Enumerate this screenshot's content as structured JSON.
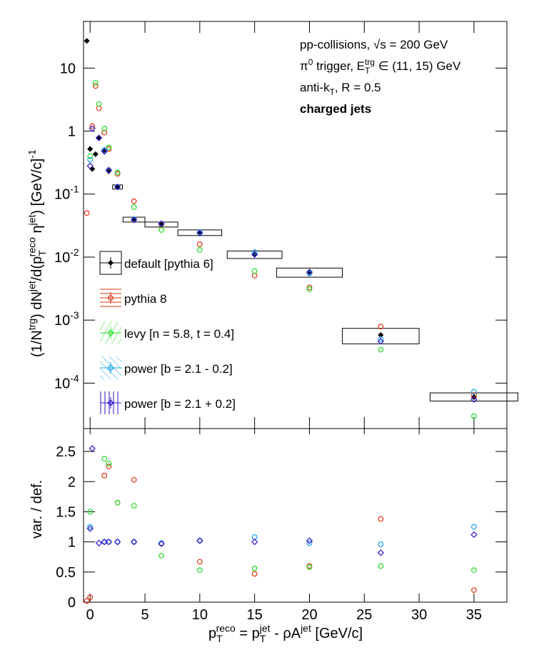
{
  "chart_data": [
    {
      "type": "scatter",
      "ylog": true,
      "ylabel": {
        "pieces": [
          "(1/N",
          "trg",
          ") dN",
          "jet",
          "/d(p",
          "T",
          "reco",
          " η",
          "jet",
          ") [GeV/c]",
          "-1"
        ],
        "styles": [
          "n",
          "sup",
          "n",
          "sup",
          "n",
          "sub",
          "sup",
          "n",
          "sup",
          "n",
          "sup"
        ]
      },
      "annotations": [
        {
          "pieces": [
            "pp-collisions, √s = 200 GeV"
          ],
          "styles": [
            "n"
          ]
        },
        {
          "pieces": [
            "π",
            "0",
            " trigger, E",
            "T",
            "trg",
            " ∈ (11, 15) GeV"
          ],
          "styles": [
            "n",
            "sup",
            "n",
            "sub",
            "sup",
            "n"
          ]
        },
        {
          "pieces": [
            "anti-k",
            "T",
            ", R = 0.5"
          ],
          "styles": [
            "n",
            "sub",
            "n"
          ]
        },
        {
          "pieces": [
            "charged jets"
          ],
          "styles": [
            "b"
          ]
        }
      ],
      "legend": "center-left",
      "xlim": [
        -0.6,
        38
      ],
      "ylim": [
        1.9e-05,
        55
      ],
      "yticks": [
        {
          "value": 0.0001,
          "label": "10",
          "sup": "-4"
        },
        {
          "value": 0.001,
          "label": "10",
          "sup": "-3"
        },
        {
          "value": 0.01,
          "label": "10",
          "sup": "-2"
        },
        {
          "value": 0.1,
          "label": "10",
          "sup": "-1"
        },
        1,
        10
      ],
      "x": [
        -0.3,
        0,
        0.2,
        0.5,
        0.8,
        1.3,
        1.7,
        2.5,
        4,
        6.5,
        10,
        15,
        20,
        26.5,
        35
      ],
      "series": [
        {
          "name": "default [pythia 6]",
          "color": "#000000",
          "marker": "diamond-filled",
          "values": [
            27,
            0.52,
            0.25,
            0.43,
            0.77,
            0.47,
            0.23,
            0.13,
            0.039,
            0.033,
            0.024,
            0.011,
            0.0057,
            0.00058,
            6e-05
          ],
          "x_err": [
            null,
            null,
            null,
            null,
            null,
            null,
            null,
            0.45,
            1,
            1.5,
            2,
            2.5,
            3,
            3.5,
            4
          ],
          "sys_low": [
            null,
            null,
            null,
            null,
            null,
            null,
            null,
            0.12,
            0.036,
            0.03,
            0.022,
            0.0095,
            0.0048,
            0.00042,
            5.2e-05
          ],
          "sys_high": [
            null,
            null,
            null,
            null,
            null,
            null,
            null,
            0.14,
            0.043,
            0.036,
            0.027,
            0.0125,
            0.0067,
            0.00074,
            7e-05
          ]
        },
        {
          "name": "pythia 8",
          "color": "#dd3311",
          "marker": "circle",
          "values": [
            0.05,
            null,
            1.2,
            5.2,
            2.3,
            0.95,
            0.52,
            0.21,
            0.077,
            0.033,
            0.016,
            0.0051,
            0.0033,
            0.00079,
            6.5e-05
          ]
        },
        {
          "name": "levy [n = 5.8, t = 0.4]",
          "color": "#22dd22",
          "marker": "circle",
          "values": [
            null,
            0.4,
            null,
            5.8,
            2.7,
            1.1,
            0.55,
            0.22,
            0.062,
            0.027,
            0.013,
            0.006,
            0.0031,
            0.00034,
            3e-05
          ]
        },
        {
          "name": "power [b = 2.1 - 0.2]",
          "color": "#11a0e8",
          "marker": "circle",
          "values": [
            null,
            0.35,
            null,
            null,
            null,
            0.5,
            0.24,
            0.13,
            0.04,
            0.034,
            0.025,
            0.012,
            0.0055,
            0.0005,
            7.3e-05
          ]
        },
        {
          "name": "power [b = 2.1 + 0.2]",
          "color": "#3311cc",
          "marker": "diamond",
          "values": [
            null,
            0.28,
            1.1,
            null,
            0.78,
            0.48,
            0.24,
            0.13,
            0.039,
            0.034,
            0.024,
            0.011,
            0.0058,
            0.00046,
            5.5e-05
          ]
        }
      ]
    },
    {
      "type": "scatter",
      "ylabel": "var. / def.",
      "xlabel": {
        "pieces": [
          "p",
          "T",
          "reco",
          " = p",
          "T",
          "jet",
          " - ρA",
          "jet",
          " [GeV/c]"
        ],
        "styles": [
          "n",
          "sub",
          "sup",
          "n",
          "sub",
          "sup",
          "n",
          "sup",
          "n"
        ]
      },
      "xlim": [
        -0.6,
        38
      ],
      "xticks": [
        0,
        5,
        10,
        15,
        20,
        25,
        30,
        35
      ],
      "ylim": [
        0,
        2.88
      ],
      "yticks": [
        0,
        0.5,
        1,
        1.5,
        2,
        2.5
      ],
      "x": [
        -0.3,
        0,
        0.2,
        0.5,
        0.8,
        1.3,
        1.7,
        2.5,
        4,
        6.5,
        10,
        15,
        20,
        26.5,
        35
      ],
      "series": [
        {
          "color": "#dd3311",
          "marker": "circle",
          "values": [
            0.02,
            0.08,
            null,
            null,
            null,
            2.1,
            2.25,
            1.65,
            2.03,
            0.97,
            0.67,
            0.47,
            0.6,
            1.38,
            0.2
          ]
        },
        {
          "color": "#22dd22",
          "marker": "circle",
          "values": [
            null,
            1.5,
            null,
            null,
            null,
            2.38,
            2.3,
            1.65,
            1.6,
            0.77,
            0.53,
            0.56,
            0.58,
            0.6,
            0.53
          ]
        },
        {
          "color": "#11a0e8",
          "marker": "circle",
          "values": [
            null,
            1.25,
            null,
            null,
            null,
            1.0,
            1.0,
            1.0,
            1.0,
            0.98,
            1.02,
            1.08,
            0.98,
            0.96,
            1.25
          ]
        },
        {
          "color": "#3311cc",
          "marker": "diamond",
          "values": [
            null,
            1.22,
            2.55,
            null,
            0.98,
            1.0,
            1.0,
            1.0,
            1.0,
            0.97,
            1.02,
            1.0,
            1.02,
            0.82,
            1.12
          ]
        }
      ]
    }
  ]
}
